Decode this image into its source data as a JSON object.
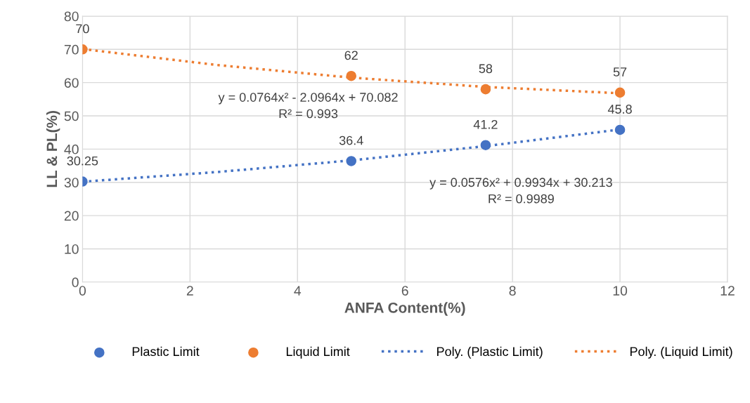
{
  "chart_data": {
    "type": "scatter",
    "xlabel": "ANFA Content(%)",
    "ylabel": "LL & PL(%)",
    "xlim": [
      0,
      12
    ],
    "xticks": [
      0,
      2,
      4,
      6,
      8,
      10,
      12
    ],
    "ylim": [
      0,
      80
    ],
    "yticks": [
      0,
      10,
      20,
      30,
      40,
      50,
      60,
      70,
      80
    ],
    "grid": true,
    "legend": "bottom",
    "series": [
      {
        "name": "Plastic Limit",
        "marker": "circle",
        "color": "#4472c4",
        "x": [
          0,
          5,
          7.5,
          10
        ],
        "values": [
          30.25,
          36.4,
          41.2,
          45.8
        ],
        "value_labels": [
          "30.25",
          "36.4",
          "41.2",
          "45.8"
        ]
      },
      {
        "name": "Liquid Limit",
        "marker": "circle",
        "color": "#ed7d31",
        "x": [
          0,
          5,
          7.5,
          10
        ],
        "values": [
          70,
          62,
          58,
          57
        ],
        "value_labels": [
          "70",
          "62",
          "58",
          "57"
        ]
      },
      {
        "name": "Poly. (Plastic Limit)",
        "type": "line",
        "line_style": "dotted",
        "marker": "none",
        "color": "#4472c4",
        "x": [
          0,
          2.5,
          5,
          7.5,
          10
        ],
        "values": [
          30.2,
          33.1,
          36.6,
          40.9,
          45.9
        ]
      },
      {
        "name": "Poly. (Liquid Limit)",
        "type": "line",
        "line_style": "dotted",
        "marker": "none",
        "color": "#ed7d31",
        "x": [
          0,
          2.5,
          5,
          7.5,
          10
        ],
        "values": [
          70.1,
          65.3,
          61.5,
          58.7,
          56.8
        ]
      }
    ],
    "annotations": [
      "y = 0.0764x² - 2.0964x + 70.082\nR² = 0.993",
      "y = 0.0576x² + 0.9934x + 30.213\nR² = 0.9989"
    ]
  }
}
